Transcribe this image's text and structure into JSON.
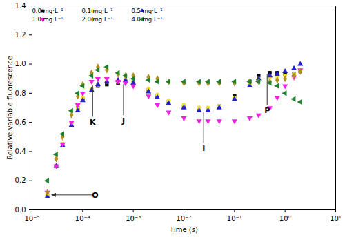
{
  "chart_data": {
    "type": "scatter",
    "xlabel": "Time (s)",
    "ylabel": "Relative variable fluorescence",
    "log": "x",
    "xlim": [
      1e-05,
      10
    ],
    "xticks": [
      {
        "value": 1e-05,
        "label": "10⁻⁵"
      },
      {
        "value": 0.0001,
        "label": "10⁻⁴"
      },
      {
        "value": 0.001,
        "label": "10⁻³"
      },
      {
        "value": 0.01,
        "label": "10⁻²"
      },
      {
        "value": 0.1,
        "label": "10⁻¹"
      },
      {
        "value": 1,
        "label": "10⁰"
      },
      {
        "value": 10,
        "label": "10¹"
      }
    ],
    "ylim": [
      0,
      1.4
    ],
    "yticks": [
      {
        "value": 0,
        "label": "0.0"
      },
      0.2,
      0.4,
      0.6,
      0.8,
      {
        "value": 1,
        "label": "1.0"
      },
      1.2,
      1.4
    ],
    "legend": "top-left",
    "x": [
      2e-05,
      3e-05,
      4e-05,
      6e-05,
      8e-05,
      0.0001,
      0.00015,
      0.0002,
      0.0003,
      0.0005,
      0.0007,
      0.001,
      0.002,
      0.003,
      0.005,
      0.01,
      0.02,
      0.03,
      0.05,
      0.1,
      0.2,
      0.3,
      0.5,
      0.7,
      1,
      1.5,
      2
    ],
    "series": [
      {
        "name": "0.0 mg·L⁻¹",
        "color": "#000000",
        "marker": "square",
        "values": [
          0.1,
          0.3,
          0.45,
          0.6,
          0.7,
          0.76,
          0.82,
          0.85,
          0.86,
          0.87,
          0.88,
          0.87,
          0.82,
          0.78,
          0.74,
          0.71,
          0.69,
          0.69,
          0.71,
          0.78,
          0.88,
          0.92,
          0.94,
          0.94,
          0.93,
          0.93,
          0.95
        ]
      },
      {
        "name": "0.1 mg·L⁻¹",
        "color": "#f0e030",
        "marker": "circle",
        "values": [
          0.1,
          0.3,
          0.45,
          0.6,
          0.7,
          0.77,
          0.83,
          0.86,
          0.88,
          0.88,
          0.89,
          0.88,
          0.83,
          0.79,
          0.75,
          0.72,
          0.7,
          0.7,
          0.71,
          0.77,
          0.86,
          0.9,
          0.91,
          0.91,
          0.92,
          0.93,
          0.96
        ]
      },
      {
        "name": "0.5 mg·L⁻¹",
        "color": "#2020d0",
        "marker": "triangle-up",
        "values": [
          0.09,
          0.3,
          0.44,
          0.58,
          0.68,
          0.75,
          0.82,
          0.86,
          0.88,
          0.89,
          0.89,
          0.87,
          0.81,
          0.77,
          0.73,
          0.7,
          0.68,
          0.68,
          0.7,
          0.76,
          0.85,
          0.9,
          0.92,
          0.93,
          0.95,
          0.97,
          1.0
        ]
      },
      {
        "name": "1.0 mg·L⁻¹",
        "color": "#f020e0",
        "marker": "triangle-down",
        "values": [
          0.12,
          0.3,
          0.45,
          0.6,
          0.72,
          0.8,
          0.88,
          0.9,
          0.9,
          0.88,
          0.87,
          0.85,
          0.78,
          0.72,
          0.67,
          0.63,
          0.61,
          0.61,
          0.61,
          0.61,
          0.63,
          0.65,
          0.7,
          0.77,
          0.85,
          0.91,
          0.96
        ]
      },
      {
        "name": "2.0 mg·L⁻¹",
        "color": "#b09020",
        "marker": "diamond",
        "values": [
          0.12,
          0.35,
          0.5,
          0.65,
          0.78,
          0.86,
          0.94,
          0.98,
          0.96,
          0.93,
          0.92,
          0.92,
          0.91,
          0.9,
          0.88,
          0.87,
          0.87,
          0.87,
          0.87,
          0.87,
          0.88,
          0.88,
          0.88,
          0.89,
          0.9,
          0.92,
          0.95
        ]
      },
      {
        "name": "4.0 mg·L⁻¹",
        "color": "#208030",
        "marker": "triangle-left",
        "values": [
          0.2,
          0.38,
          0.52,
          0.68,
          0.8,
          0.85,
          0.92,
          0.96,
          0.98,
          0.94,
          0.92,
          0.9,
          0.89,
          0.88,
          0.88,
          0.88,
          0.88,
          0.88,
          0.88,
          0.88,
          0.88,
          0.88,
          0.87,
          0.85,
          0.8,
          0.76,
          0.74
        ]
      }
    ],
    "annotations": [
      {
        "text": "O",
        "x": 2.4e-05,
        "y": 0.1
      },
      {
        "text": "K",
        "x": 0.00016,
        "y": 0.85
      },
      {
        "text": "J",
        "x": 0.00065,
        "y": 0.86
      },
      {
        "text": "I",
        "x": 0.025,
        "y": 0.67
      },
      {
        "text": "P",
        "x": 0.45,
        "y": 0.93
      }
    ]
  }
}
